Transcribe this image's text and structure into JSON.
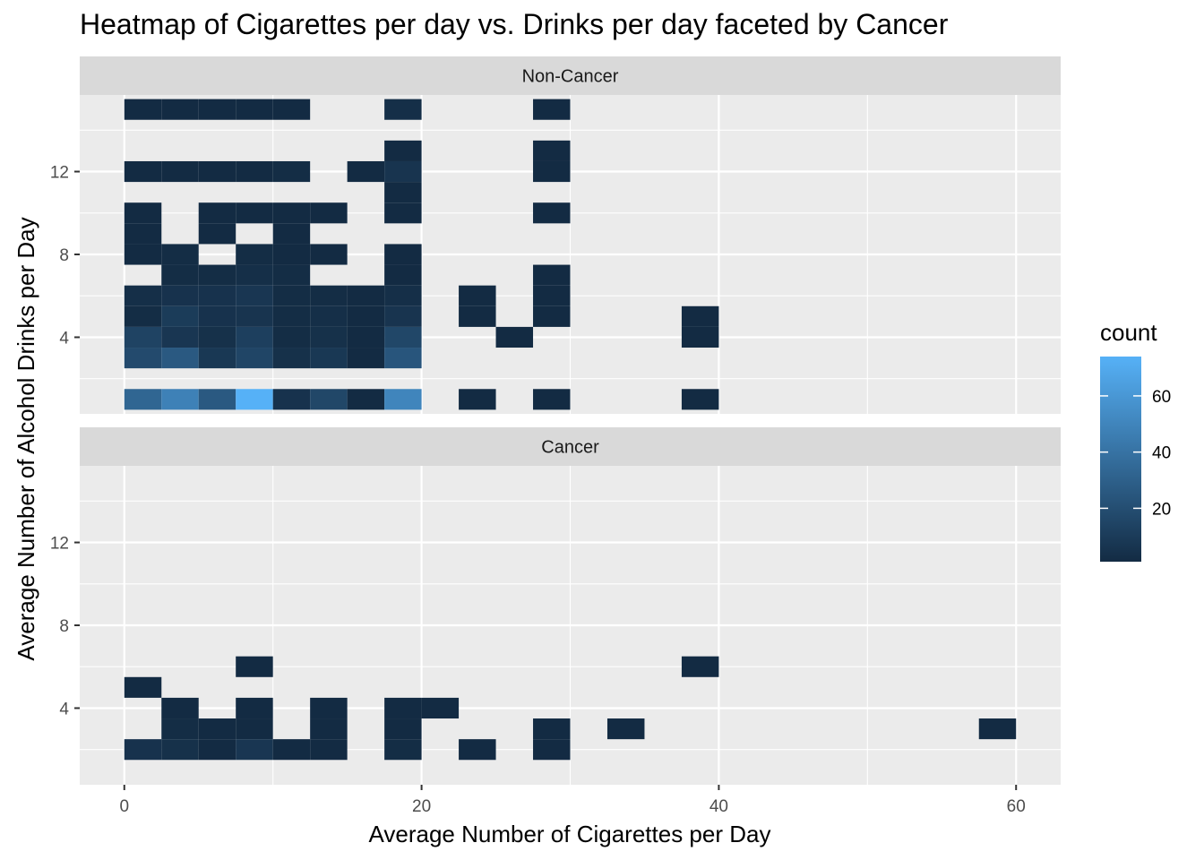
{
  "chart_data": {
    "type": "heatmap",
    "title": "Heatmap of Cigarettes per day vs. Drinks per day faceted by Cancer",
    "xlabel": "Average Number of Cigarettes per Day",
    "ylabel": "Average Number of Alcohol Drinks per Day",
    "xlim": [
      -3,
      63
    ],
    "x_ticks": [
      0,
      20,
      40,
      60
    ],
    "y_ticks": [
      4,
      8,
      12
    ],
    "bin_width_x": 2.5,
    "bin_height_y": 1,
    "grid": true,
    "legend": {
      "title": "count",
      "position": "right",
      "range": [
        1,
        74
      ],
      "ticks": [
        20,
        40,
        60
      ],
      "low_color": "#132B43",
      "high_color": "#56B1F7"
    },
    "facets": [
      {
        "label": "Non-Cancer",
        "ylim": [
          0.3,
          15.7
        ],
        "cells": [
          {
            "x": 0,
            "y": 15,
            "count": 1
          },
          {
            "x": 2.5,
            "y": 15,
            "count": 1
          },
          {
            "x": 5,
            "y": 15,
            "count": 1
          },
          {
            "x": 7.5,
            "y": 15,
            "count": 1
          },
          {
            "x": 10,
            "y": 15,
            "count": 1
          },
          {
            "x": 17.5,
            "y": 15,
            "count": 3
          },
          {
            "x": 27.5,
            "y": 15,
            "count": 1
          },
          {
            "x": 17.5,
            "y": 13,
            "count": 1
          },
          {
            "x": 27.5,
            "y": 13,
            "count": 1
          },
          {
            "x": 0,
            "y": 12,
            "count": 1
          },
          {
            "x": 2.5,
            "y": 12,
            "count": 1
          },
          {
            "x": 5,
            "y": 12,
            "count": 1
          },
          {
            "x": 7.5,
            "y": 12,
            "count": 1
          },
          {
            "x": 10,
            "y": 12,
            "count": 2
          },
          {
            "x": 15,
            "y": 12,
            "count": 1
          },
          {
            "x": 17.5,
            "y": 12,
            "count": 6
          },
          {
            "x": 27.5,
            "y": 12,
            "count": 1
          },
          {
            "x": 17.5,
            "y": 11,
            "count": 1
          },
          {
            "x": 0,
            "y": 10,
            "count": 1
          },
          {
            "x": 5,
            "y": 10,
            "count": 1
          },
          {
            "x": 7.5,
            "y": 10,
            "count": 1
          },
          {
            "x": 10,
            "y": 10,
            "count": 1
          },
          {
            "x": 12.5,
            "y": 10,
            "count": 1
          },
          {
            "x": 17.5,
            "y": 10,
            "count": 1
          },
          {
            "x": 27.5,
            "y": 10,
            "count": 1
          },
          {
            "x": 0,
            "y": 9,
            "count": 1
          },
          {
            "x": 5,
            "y": 9,
            "count": 1
          },
          {
            "x": 10,
            "y": 9,
            "count": 1
          },
          {
            "x": 0,
            "y": 8,
            "count": 1
          },
          {
            "x": 2.5,
            "y": 8,
            "count": 2
          },
          {
            "x": 7.5,
            "y": 8,
            "count": 2
          },
          {
            "x": 10,
            "y": 8,
            "count": 1
          },
          {
            "x": 12.5,
            "y": 8,
            "count": 1
          },
          {
            "x": 17.5,
            "y": 8,
            "count": 1
          },
          {
            "x": 2.5,
            "y": 7,
            "count": 2
          },
          {
            "x": 5,
            "y": 7,
            "count": 2
          },
          {
            "x": 7.5,
            "y": 7,
            "count": 3
          },
          {
            "x": 10,
            "y": 7,
            "count": 2
          },
          {
            "x": 17.5,
            "y": 7,
            "count": 1
          },
          {
            "x": 27.5,
            "y": 7,
            "count": 1
          },
          {
            "x": 0,
            "y": 6,
            "count": 3
          },
          {
            "x": 2.5,
            "y": 6,
            "count": 5
          },
          {
            "x": 5,
            "y": 6,
            "count": 5
          },
          {
            "x": 7.5,
            "y": 6,
            "count": 7
          },
          {
            "x": 10,
            "y": 6,
            "count": 2
          },
          {
            "x": 12.5,
            "y": 6,
            "count": 2
          },
          {
            "x": 15,
            "y": 6,
            "count": 1
          },
          {
            "x": 17.5,
            "y": 6,
            "count": 3
          },
          {
            "x": 22.5,
            "y": 6,
            "count": 1
          },
          {
            "x": 27.5,
            "y": 6,
            "count": 1
          },
          {
            "x": 0,
            "y": 5,
            "count": 2
          },
          {
            "x": 2.5,
            "y": 5,
            "count": 10
          },
          {
            "x": 5,
            "y": 5,
            "count": 5
          },
          {
            "x": 7.5,
            "y": 5,
            "count": 6
          },
          {
            "x": 10,
            "y": 5,
            "count": 2
          },
          {
            "x": 12.5,
            "y": 5,
            "count": 3
          },
          {
            "x": 15,
            "y": 5,
            "count": 1
          },
          {
            "x": 17.5,
            "y": 5,
            "count": 6
          },
          {
            "x": 22.5,
            "y": 5,
            "count": 1
          },
          {
            "x": 27.5,
            "y": 5,
            "count": 1
          },
          {
            "x": 37.5,
            "y": 5,
            "count": 1
          },
          {
            "x": 0,
            "y": 4,
            "count": 14
          },
          {
            "x": 2.5,
            "y": 4,
            "count": 7
          },
          {
            "x": 5,
            "y": 4,
            "count": 4
          },
          {
            "x": 7.5,
            "y": 4,
            "count": 12
          },
          {
            "x": 10,
            "y": 4,
            "count": 2
          },
          {
            "x": 12.5,
            "y": 4,
            "count": 4
          },
          {
            "x": 15,
            "y": 4,
            "count": 1
          },
          {
            "x": 17.5,
            "y": 4,
            "count": 16
          },
          {
            "x": 25,
            "y": 4,
            "count": 1
          },
          {
            "x": 37.5,
            "y": 4,
            "count": 1
          },
          {
            "x": 0,
            "y": 3,
            "count": 18
          },
          {
            "x": 2.5,
            "y": 3,
            "count": 26
          },
          {
            "x": 5,
            "y": 3,
            "count": 8
          },
          {
            "x": 7.5,
            "y": 3,
            "count": 15
          },
          {
            "x": 10,
            "y": 3,
            "count": 4
          },
          {
            "x": 12.5,
            "y": 3,
            "count": 8
          },
          {
            "x": 15,
            "y": 3,
            "count": 1
          },
          {
            "x": 17.5,
            "y": 3,
            "count": 24
          },
          {
            "x": 0,
            "y": 1,
            "count": 33
          },
          {
            "x": 2.5,
            "y": 1,
            "count": 48
          },
          {
            "x": 5,
            "y": 1,
            "count": 26
          },
          {
            "x": 7.5,
            "y": 1,
            "count": 74
          },
          {
            "x": 10,
            "y": 1,
            "count": 5
          },
          {
            "x": 12.5,
            "y": 1,
            "count": 16
          },
          {
            "x": 15,
            "y": 1,
            "count": 1
          },
          {
            "x": 17.5,
            "y": 1,
            "count": 50
          },
          {
            "x": 22.5,
            "y": 1,
            "count": 1
          },
          {
            "x": 27.5,
            "y": 1,
            "count": 1
          },
          {
            "x": 37.5,
            "y": 1,
            "count": 1
          }
        ]
      },
      {
        "label": "Cancer",
        "ylim": [
          0.3,
          15.7
        ],
        "cells": [
          {
            "x": 7.5,
            "y": 6,
            "count": 1
          },
          {
            "x": 37.5,
            "y": 6,
            "count": 1
          },
          {
            "x": 0,
            "y": 5,
            "count": 1
          },
          {
            "x": 2.5,
            "y": 4,
            "count": 1
          },
          {
            "x": 7.5,
            "y": 4,
            "count": 1
          },
          {
            "x": 12.5,
            "y": 4,
            "count": 1
          },
          {
            "x": 17.5,
            "y": 4,
            "count": 1
          },
          {
            "x": 20,
            "y": 4,
            "count": 1
          },
          {
            "x": 2.5,
            "y": 3,
            "count": 2
          },
          {
            "x": 5,
            "y": 3,
            "count": 1
          },
          {
            "x": 7.5,
            "y": 3,
            "count": 1
          },
          {
            "x": 12.5,
            "y": 3,
            "count": 1
          },
          {
            "x": 17.5,
            "y": 3,
            "count": 1
          },
          {
            "x": 27.5,
            "y": 3,
            "count": 1
          },
          {
            "x": 32.5,
            "y": 3,
            "count": 1
          },
          {
            "x": 57.5,
            "y": 3,
            "count": 1
          },
          {
            "x": 0,
            "y": 2,
            "count": 5
          },
          {
            "x": 2.5,
            "y": 2,
            "count": 4
          },
          {
            "x": 5,
            "y": 2,
            "count": 1
          },
          {
            "x": 7.5,
            "y": 2,
            "count": 7
          },
          {
            "x": 10,
            "y": 2,
            "count": 1
          },
          {
            "x": 12.5,
            "y": 2,
            "count": 1
          },
          {
            "x": 17.5,
            "y": 2,
            "count": 2
          },
          {
            "x": 22.5,
            "y": 2,
            "count": 1
          },
          {
            "x": 27.5,
            "y": 2,
            "count": 1
          }
        ]
      }
    ]
  }
}
